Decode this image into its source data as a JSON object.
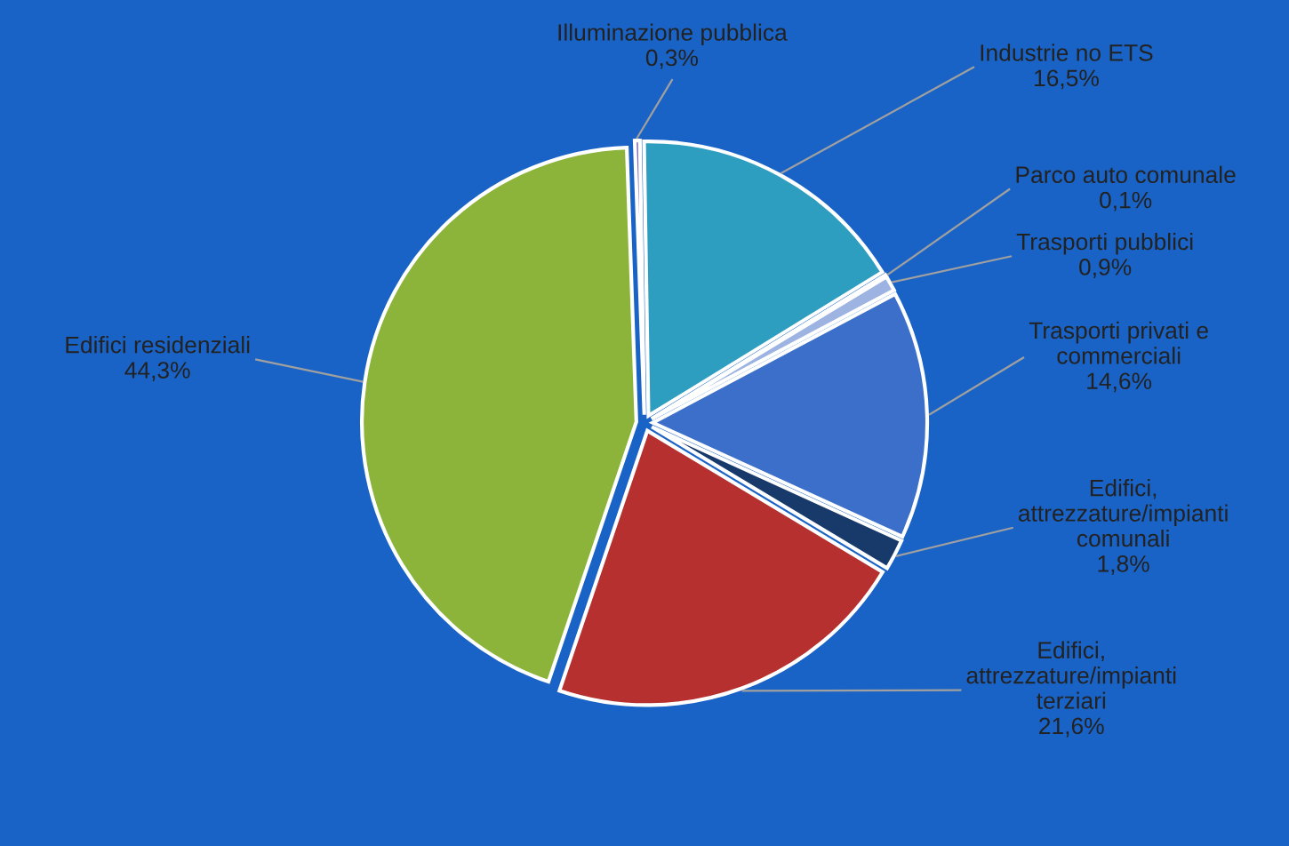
{
  "chart_data": {
    "type": "pie",
    "categories": [
      "Illuminazione pubblica",
      "Industrie no ETS",
      "Parco auto comunale",
      "Trasporti pubblici",
      "Trasporti privati e\ncommerciali",
      "Edifici,\nattrezzature/impianti\ncomunali",
      "Edifici,\nattrezzature/impianti\nterziari",
      "Edifici residenziali"
    ],
    "values": [
      0.3,
      16.5,
      0.1,
      0.9,
      14.6,
      1.8,
      21.6,
      44.3
    ],
    "value_labels": [
      "0,3%",
      "16,5%",
      "0,1%",
      "0,9%",
      "14,6%",
      "1,8%",
      "21,6%",
      "44,3%"
    ],
    "colors": [
      "#7d6bb8",
      "#2e9ec0",
      "#c9d3e8",
      "#9db4e2",
      "#3b6fc9",
      "#173a6b",
      "#b5302f",
      "#8db43a"
    ],
    "legend": false
  }
}
